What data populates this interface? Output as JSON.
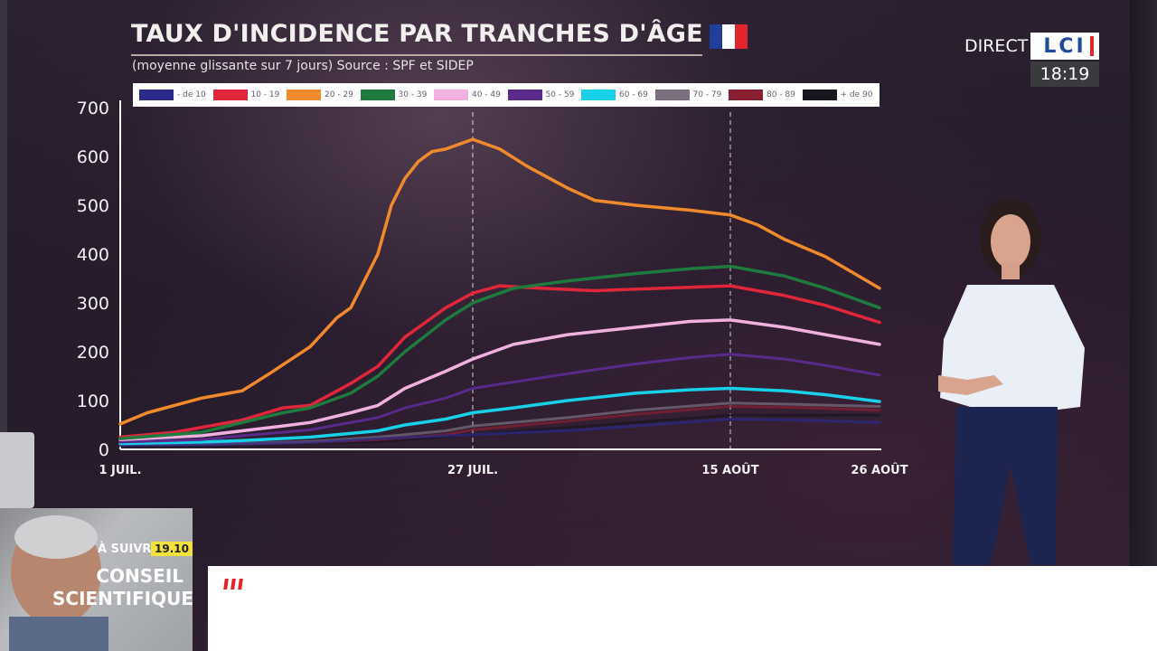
{
  "broadcast": {
    "direct_label": "DIRECT",
    "channel_logo": "LCI",
    "clock": "18:19",
    "up_next_label": "À SUIVRE",
    "up_next_time": "19.10",
    "up_next_show_line1": "CONSEIL",
    "up_next_show_line2": "SCIENTIFIQUE",
    "flag_colors": [
      "#1f3f9a",
      "#ffffff",
      "#e2242c"
    ]
  },
  "chart_data": {
    "type": "line",
    "title": "TAUX D'INCIDENCE PAR TRANCHES D'ÂGE",
    "subtitle": "(moyenne glissante sur 7 jours) Source : SPF et SIDEP",
    "ylim": [
      0,
      700
    ],
    "yticks": [
      "0",
      "100",
      "200",
      "300",
      "400",
      "500",
      "600",
      "700"
    ],
    "x_dates": [
      "1 juil.",
      "27 juil.",
      "15 août",
      "26 août"
    ],
    "xticks": [
      {
        "label": "1 JUIL.",
        "day": 0
      },
      {
        "label": "27 JUIL.",
        "day": 26
      },
      {
        "label": "15 AOÛT",
        "day": 45
      },
      {
        "label": "26 AOÛT",
        "day": 56
      }
    ],
    "reference_lines": [
      "27 JUIL.",
      "15 AOÛT"
    ],
    "series": [
      {
        "name": "- de 10",
        "color": "#2a2a8a",
        "x": [
          "1 juil.",
          "8 juil.",
          "15 juil.",
          "20 juil.",
          "27 juil.",
          "4 août",
          "10 août",
          "15 août",
          "20 août",
          "26 août"
        ],
        "y": [
          8,
          10,
          14,
          22,
          30,
          40,
          52,
          62,
          60,
          55
        ]
      },
      {
        "name": "10 - 19",
        "color": "#e0263a",
        "x": [
          "1 juil.",
          "5 juil.",
          "10 juil.",
          "13 juil.",
          "15 juil.",
          "18 juil.",
          "20 juil.",
          "22 juil.",
          "25 juil.",
          "27 juil.",
          "29 juil.",
          "1 août",
          "5 août",
          "10 août",
          "15 août",
          "19 août",
          "22 août",
          "26 août"
        ],
        "y": [
          25,
          35,
          60,
          85,
          90,
          135,
          170,
          230,
          290,
          320,
          335,
          330,
          325,
          330,
          335,
          315,
          295,
          260
        ]
      },
      {
        "name": "20 - 29",
        "color": "#f08a2c",
        "x": [
          "1 juil.",
          "3 juil.",
          "7 juil.",
          "10 juil.",
          "12 juil.",
          "15 juil.",
          "17 juil.",
          "18 juil.",
          "20 juil.",
          "21 juil.",
          "22 juil.",
          "23 juil.",
          "24 juil.",
          "25 juil.",
          "27 juil.",
          "29 juil.",
          "31 juil.",
          "3 août",
          "5 août",
          "8 août",
          "10 août",
          "12 août",
          "15 août",
          "17 août",
          "19 août",
          "22 août",
          "26 août"
        ],
        "y": [
          52,
          75,
          105,
          120,
          155,
          210,
          270,
          290,
          400,
          500,
          555,
          590,
          610,
          615,
          635,
          615,
          580,
          535,
          510,
          500,
          495,
          490,
          480,
          460,
          430,
          395,
          330
        ]
      },
      {
        "name": "30 - 39",
        "color": "#1f7a3e",
        "x": [
          "1 juil.",
          "7 juil.",
          "10 juil.",
          "13 juil.",
          "15 juil.",
          "18 juil.",
          "20 juil.",
          "22 juil.",
          "25 juil.",
          "27 juil.",
          "30 juil.",
          "3 août",
          "8 août",
          "12 août",
          "15 août",
          "19 août",
          "22 août",
          "26 août"
        ],
        "y": [
          22,
          35,
          55,
          75,
          85,
          115,
          150,
          200,
          265,
          300,
          330,
          345,
          360,
          370,
          375,
          355,
          330,
          290
        ]
      },
      {
        "name": "40 - 49",
        "color": "#f0b0e0",
        "x": [
          "1 juil.",
          "7 juil.",
          "10 juil.",
          "13 juil.",
          "15 juil.",
          "18 juil.",
          "20 juil.",
          "22 juil.",
          "25 juil.",
          "27 juil.",
          "30 juil.",
          "3 août",
          "8 août",
          "12 août",
          "15 août",
          "19 août",
          "22 août",
          "26 août"
        ],
        "y": [
          20,
          28,
          38,
          48,
          55,
          75,
          90,
          125,
          160,
          185,
          215,
          235,
          250,
          262,
          265,
          250,
          235,
          215
        ]
      },
      {
        "name": "50 - 59",
        "color": "#5a2a8a",
        "x": [
          "1 juil.",
          "7 juil.",
          "10 juil.",
          "13 juil.",
          "15 juil.",
          "18 juil.",
          "20 juil.",
          "22 juil.",
          "25 juil.",
          "27 juil.",
          "3 août",
          "8 août",
          "12 août",
          "15 août",
          "19 août",
          "22 août",
          "26 août"
        ],
        "y": [
          15,
          20,
          28,
          35,
          40,
          55,
          65,
          85,
          105,
          125,
          155,
          175,
          188,
          195,
          185,
          172,
          152
        ]
      },
      {
        "name": "60 - 69",
        "color": "#18d0e8",
        "x": [
          "1 juil.",
          "7 juil.",
          "10 juil.",
          "15 juil.",
          "20 juil.",
          "22 juil.",
          "25 juil.",
          "27 juil.",
          "30 juil.",
          "3 août",
          "8 août",
          "12 août",
          "15 août",
          "19 août",
          "22 août",
          "26 août"
        ],
        "y": [
          12,
          15,
          18,
          25,
          38,
          50,
          62,
          75,
          85,
          100,
          115,
          122,
          125,
          120,
          112,
          98
        ]
      },
      {
        "name": "70 - 79",
        "color": "#7a7080",
        "x": [
          "1 juil.",
          "10 juil.",
          "15 juil.",
          "20 juil.",
          "25 juil.",
          "27 juil.",
          "3 août",
          "8 août",
          "15 août",
          "20 août",
          "26 août"
        ],
        "y": [
          10,
          12,
          16,
          25,
          38,
          48,
          65,
          80,
          95,
          92,
          88
        ]
      },
      {
        "name": "80 - 89",
        "color": "#8a1f32",
        "x": [
          "1 juil.",
          "10 juil.",
          "15 juil.",
          "20 juil.",
          "25 juil.",
          "27 juil.",
          "3 août",
          "8 août",
          "15 août",
          "20 août",
          "26 août"
        ],
        "y": [
          10,
          11,
          14,
          20,
          30,
          40,
          58,
          72,
          88,
          86,
          80
        ]
      },
      {
        "name": "+ de 90",
        "color": "#1a1620",
        "x": [
          "1 juil.",
          "10 juil.",
          "20 juil.",
          "27 juil.",
          "8 août",
          "15 août",
          "26 août"
        ],
        "y": [
          8,
          10,
          16,
          30,
          55,
          70,
          70
        ]
      }
    ]
  }
}
